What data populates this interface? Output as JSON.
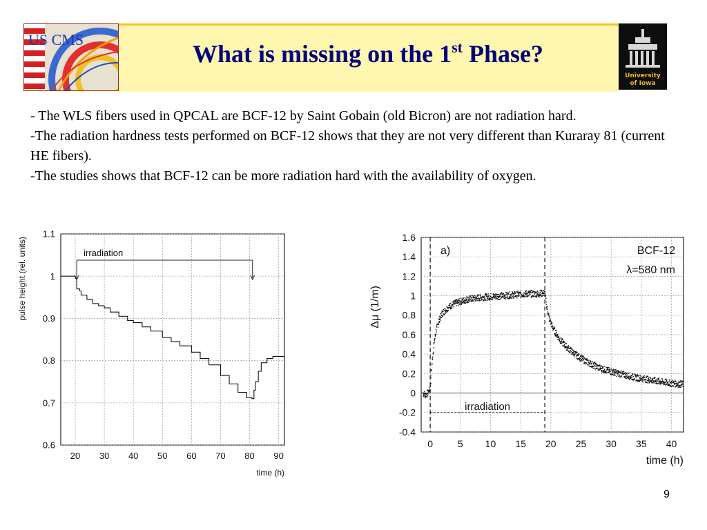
{
  "header": {
    "title_prefix": "What is missing on the 1",
    "title_sup": "st",
    "title_suffix": " Phase?",
    "logo_left_text": "US CMS",
    "logo_right_line1": "University",
    "logo_right_line2": "of Iowa"
  },
  "body": {
    "paragraphs": [
      "- The WLS fibers used in QPCAL are BCF-12 by Saint Gobain (old Bicron) are not radiation hard.",
      "-The radiation hardness tests performed on BCF-12 shows that they are not very different than Kuraray 81 (current HE fibers).",
      "-The studies shows that BCF-12 can be more radiation hard with the availability of oxygen."
    ]
  },
  "chart_data": [
    {
      "type": "line",
      "ylabel": "pulse height (rel. units)",
      "xlabel": "time (h)",
      "xlim": [
        15,
        92
      ],
      "ylim": [
        0.6,
        1.1
      ],
      "xticks": [
        20,
        30,
        40,
        50,
        60,
        70,
        80,
        90
      ],
      "yticks": [
        0.6,
        0.7,
        0.8,
        0.9,
        1.0,
        1.1
      ],
      "xtick_labels": [
        "20",
        "30",
        "40",
        "50",
        "60",
        "70",
        "80",
        "90"
      ],
      "ytick_labels": [
        "0.6",
        "0.7",
        "0.8",
        "0.9",
        "1",
        "1.1"
      ],
      "grid": true,
      "annotation": "irradiation",
      "irradiation_range": [
        20.5,
        81
      ],
      "series": [
        {
          "x": [
            15,
            18,
            20,
            20.5,
            21.5,
            22,
            24,
            26,
            28,
            30,
            32,
            35,
            38,
            40,
            43,
            46,
            50,
            53,
            56,
            60,
            63,
            66,
            70,
            73,
            76,
            79,
            80.8,
            81.5,
            82,
            83,
            84,
            86,
            88,
            92
          ],
          "y": [
            1.0,
            1.0,
            0.995,
            0.97,
            0.965,
            0.955,
            0.945,
            0.935,
            0.93,
            0.925,
            0.915,
            0.905,
            0.895,
            0.89,
            0.88,
            0.87,
            0.855,
            0.845,
            0.835,
            0.82,
            0.805,
            0.79,
            0.765,
            0.745,
            0.725,
            0.712,
            0.71,
            0.73,
            0.75,
            0.775,
            0.795,
            0.805,
            0.81,
            0.81
          ]
        }
      ]
    },
    {
      "type": "scatter",
      "ylabel": "Δμ (1/m)",
      "xlabel": "time (h)",
      "xlim": [
        -1.5,
        42
      ],
      "ylim": [
        -0.4,
        1.6
      ],
      "xticks": [
        0,
        5,
        10,
        15,
        20,
        25,
        30,
        35,
        40
      ],
      "yticks": [
        -0.4,
        -0.2,
        0,
        0.2,
        0.4,
        0.6,
        0.8,
        1,
        1.2,
        1.4,
        1.6
      ],
      "xtick_labels": [
        "0",
        "5",
        "10",
        "15",
        "20",
        "25",
        "30",
        "35",
        "40"
      ],
      "ytick_labels": [
        "-0.4",
        "-0.2",
        "0",
        "0.2",
        "0.4",
        "0.6",
        "0.8",
        "1",
        "1.2",
        "1.4",
        "1.6"
      ],
      "grid": true,
      "panel_label": "a)",
      "legend_line1": "BCF-12",
      "legend_line2": "λ=580 nm",
      "annotation": "irradiation",
      "irradiation_range": [
        0,
        19
      ],
      "series": [
        {
          "x": [
            -1.2,
            -0.8,
            -0.4,
            0,
            0.3,
            0.6,
            1,
            1.5,
            2,
            3,
            4,
            5,
            6,
            7,
            8,
            10,
            12,
            14,
            16,
            18,
            19,
            19.3,
            19.8,
            20.5,
            21.5,
            22.5,
            24,
            26,
            28,
            30,
            32,
            34,
            36,
            38,
            40,
            42
          ],
          "y": [
            0.0,
            -0.02,
            0.0,
            0.05,
            0.3,
            0.5,
            0.65,
            0.75,
            0.82,
            0.88,
            0.92,
            0.94,
            0.96,
            0.97,
            0.98,
            0.99,
            1.0,
            1.01,
            1.02,
            1.02,
            1.03,
            0.9,
            0.75,
            0.65,
            0.55,
            0.48,
            0.4,
            0.32,
            0.26,
            0.22,
            0.19,
            0.16,
            0.14,
            0.12,
            0.1,
            0.09
          ]
        }
      ]
    }
  ]
}
